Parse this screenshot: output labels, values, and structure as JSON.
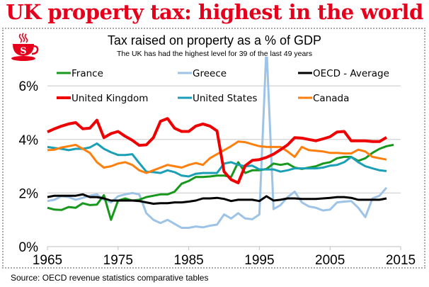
{
  "headline": "UK property tax: highest in the world",
  "logo": {
    "icon": "teacup-icon",
    "letter": "S",
    "color": "#e5001c"
  },
  "source": "Source: OECD revenue statistics comparative tables",
  "chart_data": {
    "type": "line",
    "title": "Tax raised on property as a % of GDP",
    "subtitle": "The UK has had the highest level for 39 of the last 49 years",
    "xlabel": "",
    "ylabel": "",
    "xlim": [
      1965,
      2015
    ],
    "ylim": [
      0,
      7
    ],
    "x_ticks": [
      1965,
      1975,
      1985,
      1995,
      2005,
      2015
    ],
    "x_tick_labels": [
      "1965",
      "1975",
      "1985",
      "1995",
      "2005",
      "2015"
    ],
    "y_ticks": [
      0,
      2,
      4,
      6
    ],
    "y_tick_labels": [
      "0%",
      "2%",
      "4%",
      "6%"
    ],
    "grid": true,
    "legend_placement": "top, inside plot, 3 columns",
    "series": [
      {
        "name": "France",
        "color": "#17981c",
        "start_year": 1965,
        "values": [
          1.45,
          1.38,
          1.37,
          1.48,
          1.45,
          1.62,
          1.55,
          1.57,
          1.92,
          1.0,
          1.72,
          1.8,
          1.72,
          1.75,
          1.85,
          1.9,
          1.95,
          1.95,
          2.05,
          2.35,
          2.45,
          2.6,
          2.6,
          2.62,
          2.65,
          2.65,
          2.6,
          3.15,
          2.75,
          2.85,
          2.85,
          2.9,
          3.1,
          3.05,
          3.1,
          2.95,
          2.9,
          2.95,
          3.0,
          3.1,
          3.15,
          3.3,
          3.35,
          3.35,
          3.2,
          3.3,
          3.5,
          3.65,
          3.75,
          3.8
        ]
      },
      {
        "name": "Greece",
        "color": "#9dc3e6",
        "start_year": 1965,
        "values": [
          1.7,
          1.75,
          1.88,
          1.85,
          1.75,
          1.82,
          1.9,
          1.95,
          1.75,
          1.65,
          1.88,
          1.95,
          2.0,
          1.95,
          1.25,
          1.0,
          0.88,
          1.0,
          0.85,
          0.7,
          0.7,
          0.75,
          0.72,
          0.78,
          0.82,
          1.2,
          1.05,
          1.25,
          1.05,
          1.02,
          1.2,
          7.5,
          1.4,
          1.55,
          1.85,
          2.05,
          1.65,
          1.5,
          1.45,
          1.35,
          1.38,
          1.65,
          1.68,
          1.7,
          1.45,
          1.1,
          1.8,
          1.9,
          2.2
        ]
      },
      {
        "name": "OECD - Average",
        "color": "#000000",
        "start_year": 1965,
        "values": [
          1.85,
          1.9,
          1.9,
          1.9,
          1.9,
          1.95,
          1.85,
          1.85,
          1.8,
          1.72,
          1.72,
          1.72,
          1.72,
          1.7,
          1.65,
          1.6,
          1.62,
          1.62,
          1.65,
          1.65,
          1.68,
          1.72,
          1.8,
          1.8,
          1.82,
          1.78,
          1.7,
          1.75,
          1.75,
          1.75,
          1.7,
          1.88,
          1.72,
          1.75,
          1.8,
          1.8,
          1.78,
          1.78,
          1.78,
          1.8,
          1.82,
          1.85,
          1.85,
          1.82,
          1.75,
          1.75,
          1.75,
          1.75,
          1.8
        ]
      },
      {
        "name": "United Kingdom",
        "color": "#ee0000",
        "start_year": 1965,
        "values": [
          4.28,
          4.4,
          4.5,
          4.58,
          4.63,
          4.4,
          4.42,
          4.72,
          4.07,
          4.22,
          4.3,
          4.12,
          3.97,
          3.78,
          3.8,
          4.07,
          4.68,
          4.78,
          4.42,
          4.3,
          4.3,
          4.5,
          4.58,
          4.5,
          4.32,
          2.8,
          2.5,
          2.38,
          3.02,
          3.22,
          3.25,
          3.33,
          3.45,
          3.62,
          3.8,
          4.07,
          4.05,
          4.0,
          3.95,
          4.02,
          4.1,
          4.28,
          4.3,
          3.95,
          3.95,
          3.95,
          3.92,
          3.92,
          4.08
        ]
      },
      {
        "name": "United States",
        "color": "#1b9fb6",
        "start_year": 1965,
        "values": [
          3.72,
          3.68,
          3.65,
          3.6,
          3.65,
          3.65,
          3.7,
          3.85,
          3.65,
          3.52,
          3.42,
          3.42,
          3.45,
          3.12,
          2.8,
          2.78,
          2.75,
          2.85,
          2.78,
          2.65,
          2.62,
          2.72,
          2.75,
          2.75,
          2.75,
          3.1,
          3.15,
          3.05,
          3.0,
          3.02,
          2.88,
          2.88,
          2.88,
          2.8,
          2.85,
          2.92,
          2.92,
          2.92,
          2.92,
          2.95,
          3.02,
          3.05,
          3.15,
          3.35,
          3.15,
          3.0,
          2.92,
          2.85,
          2.82
        ]
      },
      {
        "name": "Canada",
        "color": "#ff7f0e",
        "start_year": 1965,
        "values": [
          3.6,
          3.62,
          3.7,
          3.75,
          3.8,
          3.65,
          3.5,
          3.15,
          2.95,
          3.0,
          3.1,
          3.15,
          3.05,
          2.85,
          2.75,
          2.85,
          2.95,
          3.05,
          3.0,
          2.95,
          3.05,
          3.12,
          3.05,
          3.3,
          3.45,
          3.6,
          3.75,
          3.92,
          3.9,
          3.82,
          3.75,
          3.72,
          3.72,
          3.72,
          3.55,
          3.35,
          3.72,
          3.6,
          3.58,
          3.55,
          3.5,
          3.5,
          3.48,
          3.48,
          3.62,
          3.55,
          3.35,
          3.3,
          3.25
        ]
      }
    ]
  }
}
